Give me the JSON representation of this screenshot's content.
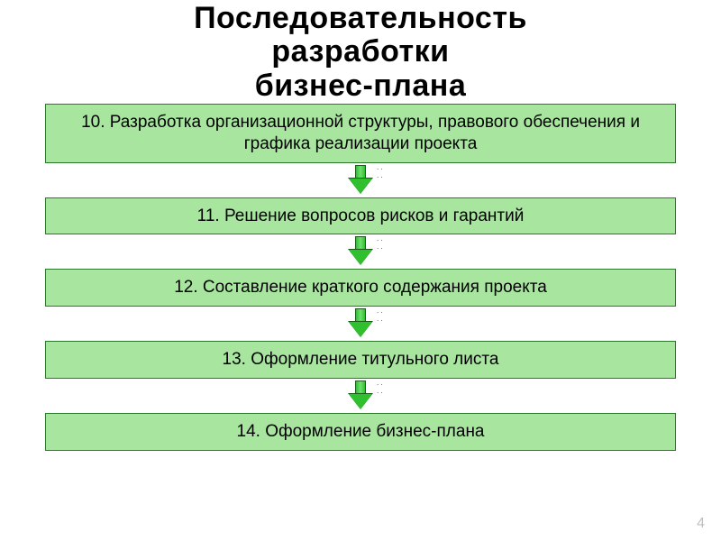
{
  "title": {
    "line1": "Последовательность",
    "line2": "разработки",
    "line3": "бизнес-плана",
    "fontsize": 34,
    "color": "#000000",
    "weight": 900
  },
  "flowchart": {
    "type": "flowchart",
    "box_fill": "#a8e6a0",
    "box_border": "#2a7a2a",
    "box_fontsize": 19,
    "text_color": "#000000",
    "arrow_fill": "#2fbf2f",
    "arrow_border": "#1a5a1a",
    "background_color": "#ffffff",
    "steps": [
      {
        "text": "10. Разработка организационной структуры, правового обеспечения и графика реализации проекта"
      },
      {
        "text": "11. Решение вопросов рисков и гарантий"
      },
      {
        "text": "12. Составление краткого содержания проекта"
      },
      {
        "text": "13. Оформление титульного листа"
      },
      {
        "text": "14. Оформление бизнес-плана"
      }
    ]
  },
  "page_number": "4",
  "page_number_color": "#bfbfbf"
}
